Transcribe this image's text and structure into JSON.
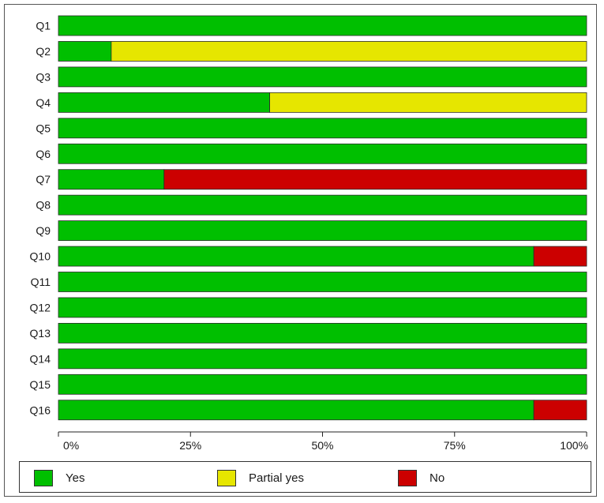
{
  "chart_data": {
    "type": "bar",
    "orientation": "horizontal",
    "stacked": true,
    "categories": [
      "Q1",
      "Q2",
      "Q3",
      "Q4",
      "Q5",
      "Q6",
      "Q7",
      "Q8",
      "Q9",
      "Q10",
      "Q11",
      "Q12",
      "Q13",
      "Q14",
      "Q15",
      "Q16"
    ],
    "series": [
      {
        "name": "Yes",
        "color": "#00bf00",
        "values": [
          100,
          10,
          100,
          40,
          100,
          100,
          20,
          100,
          100,
          90,
          100,
          100,
          100,
          100,
          100,
          90
        ]
      },
      {
        "name": "Partial yes",
        "color": "#e6e600",
        "values": [
          0,
          90,
          0,
          60,
          0,
          0,
          0,
          0,
          0,
          0,
          0,
          0,
          0,
          0,
          0,
          0
        ]
      },
      {
        "name": "No",
        "color": "#cc0000",
        "values": [
          0,
          0,
          0,
          0,
          0,
          0,
          80,
          0,
          0,
          10,
          0,
          0,
          0,
          0,
          0,
          10
        ]
      }
    ],
    "xlim": [
      0,
      100
    ],
    "xticks": [
      0,
      25,
      50,
      75,
      100
    ],
    "xtick_labels": [
      "0%",
      "25%",
      "50%",
      "75%",
      "100%"
    ],
    "legend_position": "bottom"
  }
}
